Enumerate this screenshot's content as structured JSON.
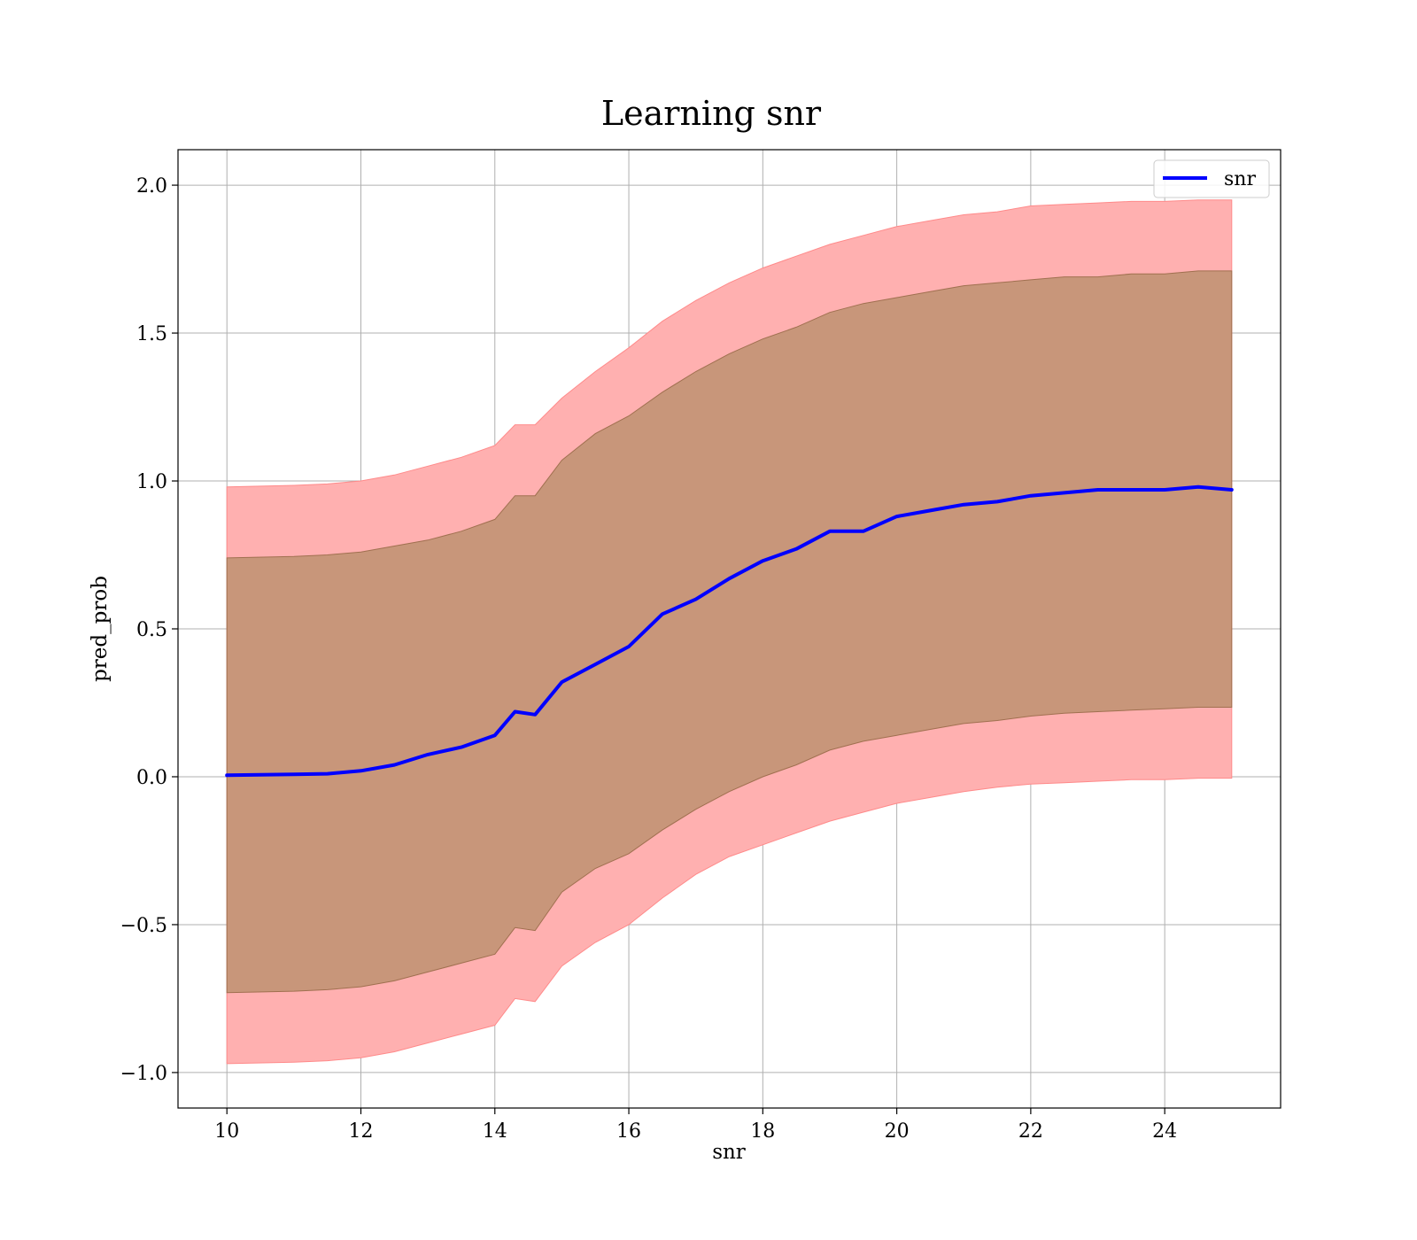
{
  "chart_data": {
    "type": "line",
    "title": "Learning snr",
    "xlabel": "snr",
    "ylabel": "pred_prob",
    "xlim": [
      9.27,
      25.73
    ],
    "ylim": [
      -1.12,
      2.12
    ],
    "xticks": [
      10,
      12,
      14,
      16,
      18,
      20,
      22,
      24
    ],
    "yticks": [
      -1.0,
      -0.5,
      0.0,
      0.5,
      1.0,
      1.5,
      2.0
    ],
    "ytick_labels": [
      "−1.0",
      "−0.5",
      "0.0",
      "0.5",
      "1.0",
      "1.5",
      "2.0"
    ],
    "grid": true,
    "legend": {
      "position": "top-right",
      "entries": [
        "snr"
      ]
    },
    "colors": {
      "line": "#0000ff",
      "band_outer": "#ffb0b0",
      "band_inner": "#c8967a"
    },
    "x": [
      10,
      11,
      11.5,
      12,
      12.5,
      13,
      13.5,
      14,
      14.3,
      14.6,
      15,
      15.5,
      16,
      16.5,
      17,
      17.5,
      18,
      18.5,
      19,
      19.5,
      20,
      20.5,
      21,
      21.5,
      22,
      22.5,
      23,
      23.5,
      24,
      24.5,
      25
    ],
    "series": [
      {
        "name": "snr",
        "values": [
          0.005,
          0.008,
          0.01,
          0.02,
          0.04,
          0.075,
          0.1,
          0.14,
          0.22,
          0.21,
          0.32,
          0.38,
          0.44,
          0.55,
          0.6,
          0.67,
          0.73,
          0.77,
          0.83,
          0.83,
          0.88,
          0.9,
          0.92,
          0.93,
          0.95,
          0.96,
          0.97,
          0.97,
          0.97,
          0.98,
          0.97
        ]
      }
    ],
    "bands": [
      {
        "level": "outer",
        "upper": [
          0.98,
          0.985,
          0.99,
          1.0,
          1.02,
          1.05,
          1.08,
          1.12,
          1.19,
          1.19,
          1.28,
          1.37,
          1.45,
          1.54,
          1.61,
          1.67,
          1.72,
          1.76,
          1.8,
          1.83,
          1.86,
          1.88,
          1.9,
          1.91,
          1.93,
          1.935,
          1.94,
          1.945,
          1.945,
          1.95,
          1.95
        ],
        "lower": [
          -0.97,
          -0.965,
          -0.96,
          -0.95,
          -0.93,
          -0.9,
          -0.87,
          -0.84,
          -0.75,
          -0.76,
          -0.64,
          -0.56,
          -0.5,
          -0.41,
          -0.33,
          -0.27,
          -0.23,
          -0.19,
          -0.15,
          -0.12,
          -0.09,
          -0.07,
          -0.05,
          -0.035,
          -0.025,
          -0.02,
          -0.015,
          -0.01,
          -0.01,
          -0.005,
          -0.005
        ]
      },
      {
        "level": "inner",
        "upper": [
          0.74,
          0.745,
          0.75,
          0.76,
          0.78,
          0.8,
          0.83,
          0.87,
          0.95,
          0.95,
          1.07,
          1.16,
          1.22,
          1.3,
          1.37,
          1.43,
          1.48,
          1.52,
          1.57,
          1.6,
          1.62,
          1.64,
          1.66,
          1.67,
          1.68,
          1.69,
          1.69,
          1.7,
          1.7,
          1.71,
          1.71
        ],
        "lower": [
          -0.73,
          -0.725,
          -0.72,
          -0.71,
          -0.69,
          -0.66,
          -0.63,
          -0.6,
          -0.51,
          -0.52,
          -0.39,
          -0.31,
          -0.26,
          -0.18,
          -0.11,
          -0.05,
          0.0,
          0.04,
          0.09,
          0.12,
          0.14,
          0.16,
          0.18,
          0.19,
          0.205,
          0.215,
          0.22,
          0.225,
          0.23,
          0.235,
          0.235
        ]
      }
    ]
  }
}
